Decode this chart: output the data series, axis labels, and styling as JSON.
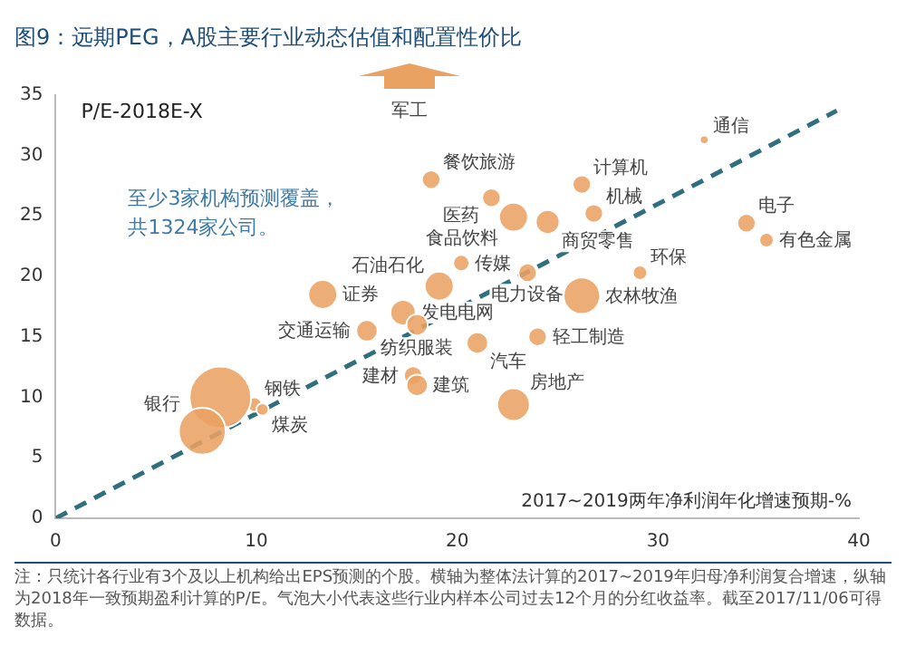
{
  "chart_data": {
    "type": "bubble",
    "title": "图9：远期PEG，A股主要行业动态估值和配置性价比",
    "xlabel": "2017~2019两年净利润年化增速预期-%",
    "ylabel": "P/E-2018E-X",
    "annotations": [
      "至少3家机构预测覆盖，共1324家公司。",
      "注：只统计各行业有3个及以上机构给出EPS预测的个股。横轴为整体法计算的2017~2019年归母净利润复合增速，纵轴为2018年一致预期盈利计算的P/E。气泡大小代表这些行业内样本公司过去12个月的分红收益率。截至2017/11/06可得数据。",
      "军工"
    ],
    "series": [
      {
        "color": "#eaa263",
        "x": [
          18.7,
          32.3,
          21.7,
          22.8,
          24.5,
          26.2,
          26.8,
          34.4,
          35.4,
          20.2,
          23.5,
          29.1,
          19.1,
          13.3,
          17.3,
          15.5,
          18.0,
          26.2,
          21.0,
          24.0,
          17.8,
          18.0,
          22.8,
          9.9,
          10.3,
          8.2,
          7.3
        ],
        "values": [
          28.0,
          31.3,
          26.5,
          24.9,
          24.5,
          27.6,
          25.2,
          24.4,
          23.0,
          21.1,
          20.3,
          20.3,
          19.2,
          18.5,
          17.0,
          15.5,
          16.0,
          18.4,
          14.5,
          15.0,
          11.8,
          11.0,
          9.4,
          9.4,
          9.0,
          10.0,
          7.2
        ],
        "sizes": [
          0.09,
          0.02,
          0.09,
          0.22,
          0.15,
          0.09,
          0.09,
          0.09,
          0.055,
          0.07,
          0.09,
          0.055,
          0.22,
          0.22,
          0.17,
          0.12,
          0.12,
          0.35,
          0.12,
          0.09,
          0.09,
          0.12,
          0.28,
          0.055,
          0.04,
          1,
          0.58
        ],
        "value_labels": [
          "餐饮旅游",
          "通信",
          "医药",
          "食品饮料",
          "商贸零售",
          "计算机",
          "机械",
          "电子",
          "有色金属",
          "传媒",
          "电力设备",
          "环保",
          "石油石化",
          "证券",
          "发电电网",
          "交通运输",
          "纺织服装",
          "农林牧渔",
          "汽车",
          "轻工制造",
          "建材",
          "建筑",
          "房地产",
          "钢铁",
          "煤炭",
          null,
          "银行"
        ]
      },
      {
        "type": "line",
        "color": "#2f6f80",
        "line_style": "dashed",
        "marker": "none",
        "x": [
          0,
          38.9
        ],
        "values": [
          0,
          33.7
        ]
      }
    ],
    "xlim": [
      0,
      40
    ],
    "xticks": [
      0,
      10,
      20,
      30,
      40
    ],
    "ylim": [
      0,
      35
    ],
    "yticks": [
      0,
      5,
      10,
      15,
      20,
      25,
      30,
      35
    ],
    "grid": false,
    "legend": false
  }
}
